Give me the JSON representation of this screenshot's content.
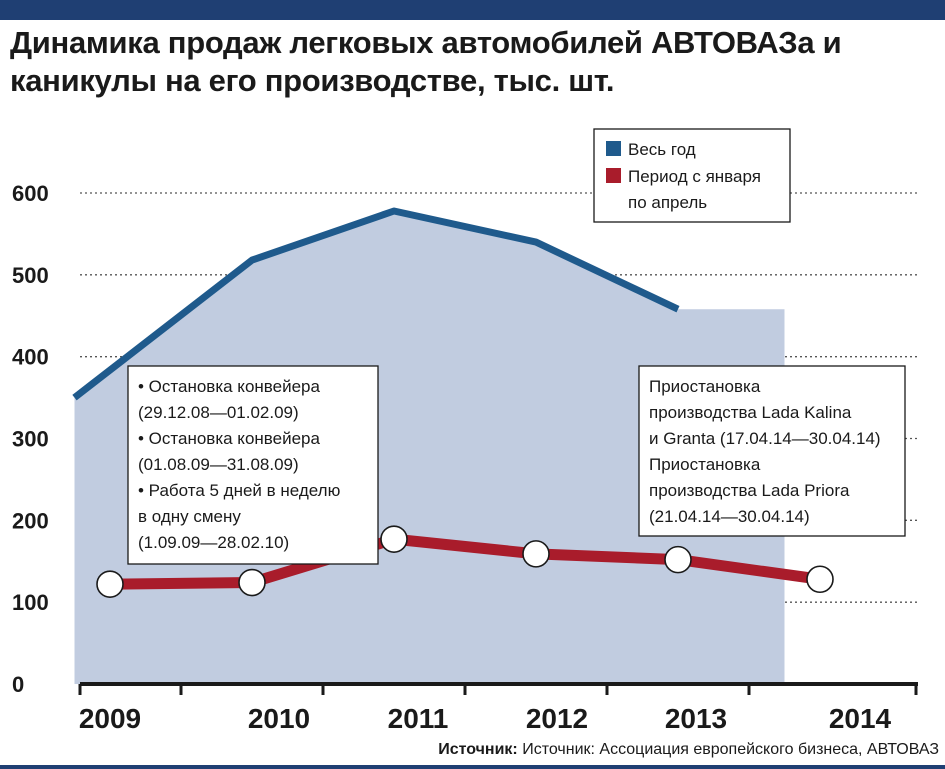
{
  "title": "Динамика продаж легковых автомобилей АВТОВАЗа и каникулы на его производстве, тыс. шт.",
  "source": {
    "label": "Источник:",
    "text": "Источник: Ассоциация европейского бизнеса, АВТОВАЗ"
  },
  "colors": {
    "full_year": "#1f5a8c",
    "jan_apr": "#a91c2b",
    "area_fill": "#c1cce0",
    "header_bar": "#1f3f73"
  },
  "chart_data": {
    "type": "line",
    "title": "Динамика продаж легковых автомобилей АВТОВАЗа и каникулы на его производстве, тыс. шт.",
    "x": [
      "2009",
      "2010",
      "2011",
      "2012",
      "2013",
      "2014"
    ],
    "ylim": [
      0,
      600
    ],
    "y_ticks": [
      "0",
      "100",
      "200",
      "300",
      "400",
      "500",
      "600"
    ],
    "grid": true,
    "legend_position": "top-right",
    "series": [
      {
        "name": "Весь год",
        "type": "area",
        "x": [
          2008.75,
          2010,
          2011,
          2012,
          2013,
          2013.75
        ],
        "values": [
          350,
          518,
          578,
          540,
          458,
          458
        ],
        "points_markers": false
      },
      {
        "name": "Период с января по апрель",
        "type": "line",
        "x": [
          2009,
          2010,
          2011,
          2012,
          2013,
          2014
        ],
        "values": [
          122,
          124,
          177,
          159,
          152,
          128
        ],
        "points_markers": true
      }
    ],
    "annotations": [
      {
        "lines": [
          "• Остановка конвейера",
          "(29.12.08—01.02.09)",
          "• Остановка конвейера",
          "(01.08.09—31.08.09)",
          "• Работа 5 дней в неделю",
          "в одну смену",
          "(1.09.09—28.02.10)"
        ]
      },
      {
        "lines": [
          "Приостановка",
          "производства Lada Kalina",
          "и Granta (17.04.14—30.04.14)",
          "Приостановка",
          "производства Lada Priora",
          "(21.04.14—30.04.14)"
        ]
      }
    ],
    "legend": [
      {
        "label_lines": [
          "Весь год"
        ]
      },
      {
        "label_lines": [
          "Период с января",
          "по апрель"
        ]
      }
    ]
  }
}
